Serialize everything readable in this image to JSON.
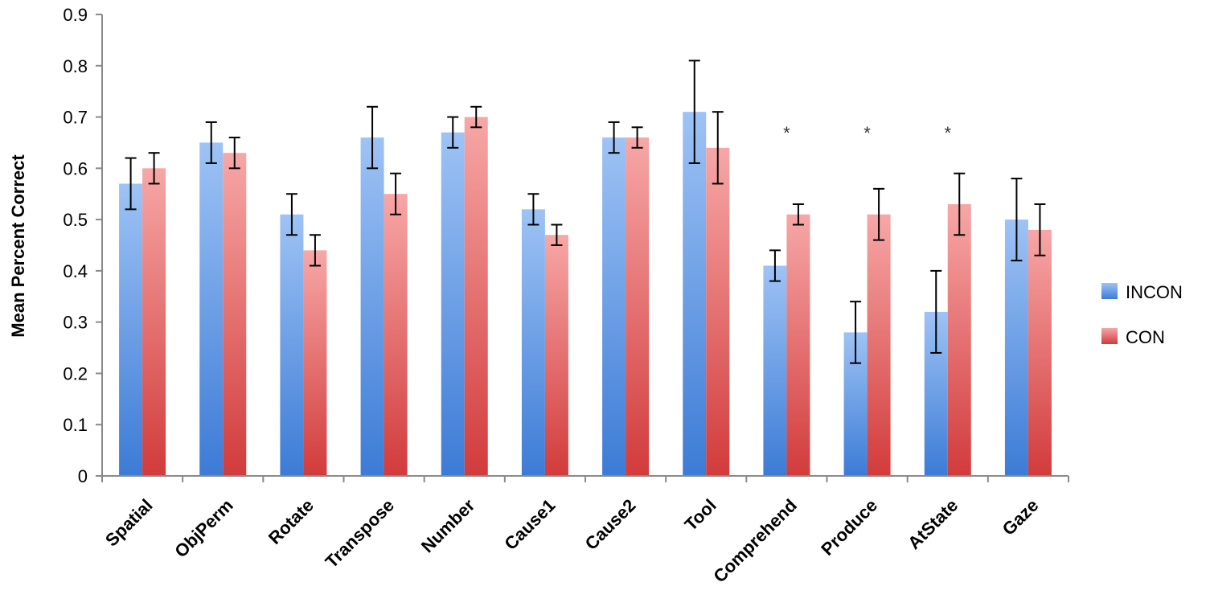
{
  "chart_data": {
    "type": "bar",
    "title": "",
    "xlabel": "",
    "ylabel": "Mean Percent Correct",
    "ylim": [
      0,
      0.9
    ],
    "yticks": [
      "0",
      "0.1",
      "0.2",
      "0.3",
      "0.4",
      "0.5",
      "0.6",
      "0.7",
      "0.8",
      "0.9"
    ],
    "categories": [
      "Spatial",
      "ObjPerm",
      "Rotate",
      "Transpose",
      "Number",
      "Cause1",
      "Cause2",
      "Tool",
      "Comprehend",
      "Produce",
      "AtState",
      "Gaze"
    ],
    "series": [
      {
        "name": "INCON",
        "values": [
          0.57,
          0.65,
          0.51,
          0.66,
          0.67,
          0.52,
          0.66,
          0.71,
          0.41,
          0.28,
          0.32,
          0.5
        ],
        "errors": [
          0.05,
          0.04,
          0.04,
          0.06,
          0.03,
          0.03,
          0.03,
          0.1,
          0.03,
          0.06,
          0.08,
          0.08
        ],
        "colors": {
          "top": "#9ec3f5",
          "bottom": "#3c7bd6"
        }
      },
      {
        "name": "CON",
        "values": [
          0.6,
          0.63,
          0.44,
          0.55,
          0.7,
          0.47,
          0.66,
          0.64,
          0.51,
          0.51,
          0.53,
          0.48
        ],
        "errors": [
          0.03,
          0.03,
          0.03,
          0.04,
          0.02,
          0.02,
          0.02,
          0.07,
          0.02,
          0.05,
          0.06,
          0.05
        ],
        "colors": {
          "top": "#f7a7a7",
          "bottom": "#d23b3b"
        }
      }
    ],
    "annotations": [
      {
        "category": "Comprehend",
        "text": "*"
      },
      {
        "category": "Produce",
        "text": "*"
      },
      {
        "category": "AtState",
        "text": "*"
      }
    ],
    "legend": {
      "position": "right",
      "entries": [
        "INCON",
        "CON"
      ]
    },
    "grid": false
  }
}
